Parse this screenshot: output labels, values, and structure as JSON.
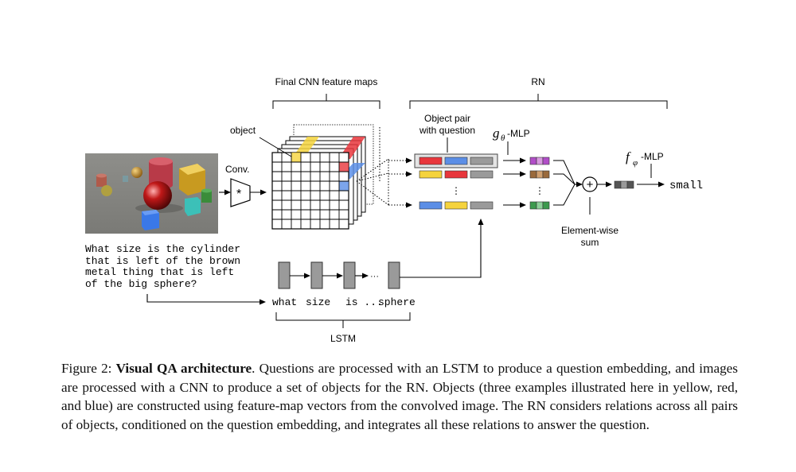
{
  "diagram": {
    "labels": {
      "cnn_maps": "Final CNN feature maps",
      "rn": "RN",
      "object": "object",
      "conv": "Conv.",
      "conv_symbol": "*",
      "object_pair_line1": "Object pair",
      "object_pair_line2": "with question",
      "g_mlp_symbol": "g",
      "g_mlp_subscript": "θ",
      "g_mlp_suffix": "-MLP",
      "f_mlp_symbol": "f",
      "f_mlp_subscript": "φ",
      "f_mlp_suffix": "-MLP",
      "sum_symbol": "+",
      "elementwise_line1": "Element-wise",
      "elementwise_line2": "sum",
      "answer": "small",
      "lstm": "LSTM",
      "lstm_dots": "···",
      "vertical_dots": "⋮"
    },
    "question": "What size is the cylinder\nthat is left of the brown\nmetal thing that is left\nof the big sphere?",
    "words": [
      "what",
      "size",
      "is ...",
      "sphere"
    ],
    "colors": {
      "yellow": "#f5d33c",
      "red": "#e8363c",
      "blue": "#5b8ee6",
      "gray": "#9a9a9a",
      "purple": "#b14ec8",
      "brown": "#9a6a3c",
      "green": "#3d9a4e"
    }
  },
  "caption": {
    "prefix": "Figure 2: ",
    "title": "Visual QA architecture",
    "body": ". Questions are processed with an LSTM to produce a question embedding, and images are processed with a CNN to produce a set of objects for the RN. Objects (three examples illustrated here in yellow, red, and blue) are constructed using feature-map vectors from the convolved image. The RN considers relations across all pairs of objects, conditioned on the question embedding, and integrates all these relations to answer the question."
  }
}
